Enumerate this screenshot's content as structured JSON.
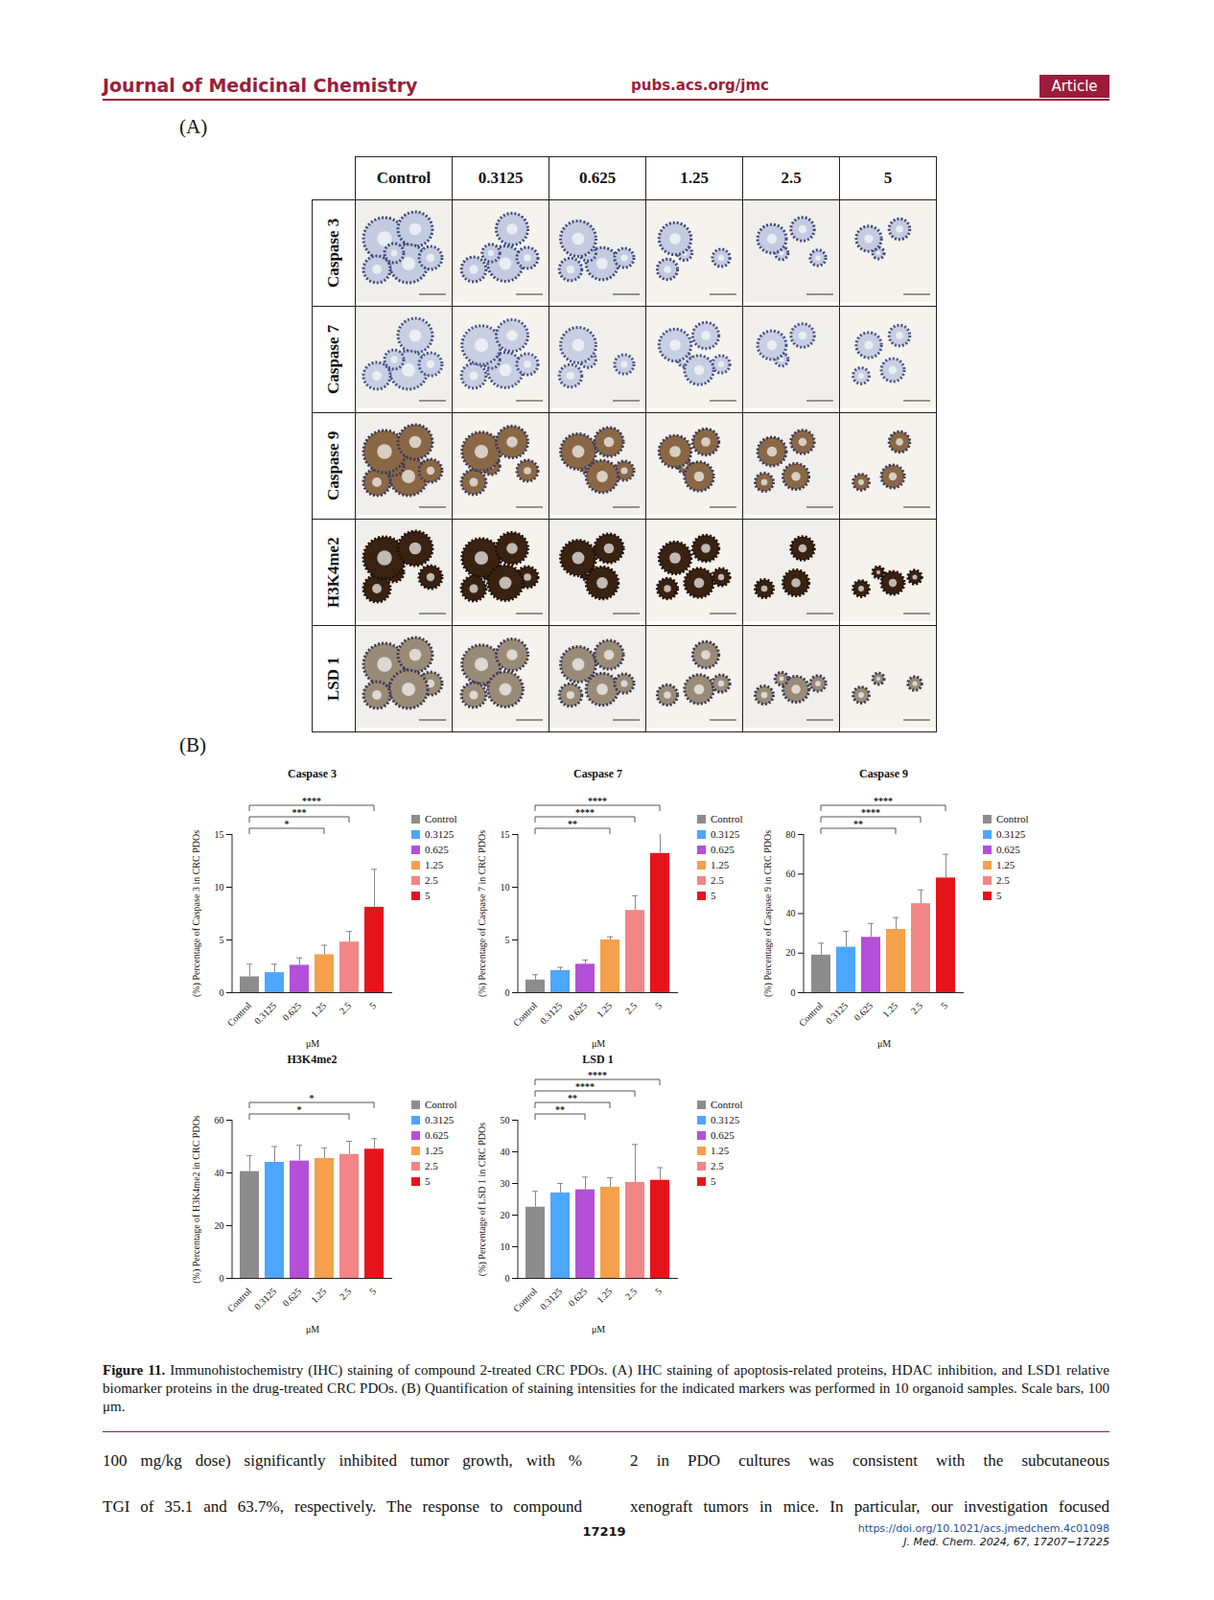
{
  "header": {
    "journal": "Journal of Medicinal Chemistry",
    "site": "pubs.acs.org/jmc",
    "tag": "Article"
  },
  "panel_a": {
    "label": "(A)",
    "columns": [
      "Control",
      "0.3125",
      "0.625",
      "1.25",
      "2.5",
      "5"
    ],
    "rows": [
      "Caspase 3",
      "Caspase 7",
      "Caspase 9",
      "H3K4me2",
      "LSD 1"
    ]
  },
  "panel_b_label": "(B)",
  "chart_data": [
    {
      "type": "bar",
      "title": "Caspase 3",
      "categories": [
        "Control",
        "0.3125",
        "0.625",
        "1.25",
        "2.5",
        "5"
      ],
      "values": [
        1.5,
        1.9,
        2.6,
        3.6,
        4.8,
        8.1
      ],
      "errors": [
        1.2,
        0.8,
        0.7,
        0.9,
        1.0,
        3.6
      ],
      "colors": [
        "#8c8c8c",
        "#4da6ff",
        "#b44fd8",
        "#f5a04a",
        "#f28585",
        "#e8141c"
      ],
      "xlabel": "μM",
      "ylabel": "(%) Percentage of Caspase 3 in CRC PDOs",
      "ylim": [
        0,
        15
      ],
      "yticks": [
        0,
        5,
        10,
        15
      ],
      "legend": "right",
      "significance": [
        {
          "from": "Control",
          "to": "1.25",
          "label": "*"
        },
        {
          "from": "Control",
          "to": "2.5",
          "label": "***"
        },
        {
          "from": "Control",
          "to": "5",
          "label": "****"
        }
      ]
    },
    {
      "type": "bar",
      "title": "Caspase 7",
      "categories": [
        "Control",
        "0.3125",
        "0.625",
        "1.25",
        "2.5",
        "5"
      ],
      "values": [
        1.2,
        2.1,
        2.7,
        5.0,
        7.8,
        13.2
      ],
      "errors": [
        0.5,
        0.3,
        0.4,
        0.3,
        1.4,
        2.3
      ],
      "colors": [
        "#8c8c8c",
        "#4da6ff",
        "#b44fd8",
        "#f5a04a",
        "#f28585",
        "#e8141c"
      ],
      "xlabel": "μM",
      "ylabel": "(%) Percentage of Caspase 7 in CRC PDOs",
      "ylim": [
        0,
        15
      ],
      "yticks": [
        0,
        5,
        10,
        15
      ],
      "legend": "right",
      "significance": [
        {
          "from": "Control",
          "to": "1.25",
          "label": "**"
        },
        {
          "from": "Control",
          "to": "2.5",
          "label": "****"
        },
        {
          "from": "Control",
          "to": "5",
          "label": "****"
        }
      ]
    },
    {
      "type": "bar",
      "title": "Caspase 9",
      "categories": [
        "Control",
        "0.3125",
        "0.625",
        "1.25",
        "2.5",
        "5"
      ],
      "values": [
        19,
        23,
        28,
        32,
        45,
        58
      ],
      "errors": [
        6,
        8,
        7,
        6,
        7,
        12
      ],
      "colors": [
        "#8c8c8c",
        "#4da6ff",
        "#b44fd8",
        "#f5a04a",
        "#f28585",
        "#e8141c"
      ],
      "xlabel": "μM",
      "ylabel": "(%) Percentage of Caspase 9 in CRC PDOs",
      "ylim": [
        0,
        80
      ],
      "yticks": [
        0,
        20,
        40,
        60,
        80
      ],
      "legend": "right",
      "significance": [
        {
          "from": "Control",
          "to": "1.25",
          "label": "**"
        },
        {
          "from": "Control",
          "to": "2.5",
          "label": "****"
        },
        {
          "from": "Control",
          "to": "5",
          "label": "****"
        }
      ]
    },
    {
      "type": "bar",
      "title": "H3K4me2",
      "categories": [
        "Control",
        "0.3125",
        "0.625",
        "1.25",
        "2.5",
        "5"
      ],
      "values": [
        40.5,
        44,
        44.5,
        45.5,
        47,
        49
      ],
      "errors": [
        6,
        6,
        6,
        4,
        5,
        4
      ],
      "colors": [
        "#8c8c8c",
        "#4da6ff",
        "#b44fd8",
        "#f5a04a",
        "#f28585",
        "#e8141c"
      ],
      "xlabel": "μM",
      "ylabel": "(%) Percentage of H3K4me2 in CRC PDOs",
      "ylim": [
        0,
        60
      ],
      "yticks": [
        0,
        20,
        40,
        60
      ],
      "legend": "right",
      "significance": [
        {
          "from": "Control",
          "to": "2.5",
          "label": "*"
        },
        {
          "from": "Control",
          "to": "5",
          "label": "*"
        }
      ]
    },
    {
      "type": "bar",
      "title": "LSD 1",
      "categories": [
        "Control",
        "0.3125",
        "0.625",
        "1.25",
        "2.5",
        "5"
      ],
      "values": [
        22.5,
        27,
        28,
        28.8,
        30.3,
        31
      ],
      "errors": [
        5,
        3,
        4,
        3,
        12,
        4
      ],
      "colors": [
        "#8c8c8c",
        "#4da6ff",
        "#b44fd8",
        "#f5a04a",
        "#f28585",
        "#e8141c"
      ],
      "xlabel": "μM",
      "ylabel": "(%) Percentage of LSD 1 in CRC PDOs",
      "ylim": [
        0,
        50
      ],
      "yticks": [
        0,
        10,
        20,
        30,
        40,
        50
      ],
      "legend": "right",
      "significance": [
        {
          "from": "Control",
          "to": "0.625",
          "label": "**"
        },
        {
          "from": "Control",
          "to": "1.25",
          "label": "**"
        },
        {
          "from": "Control",
          "to": "2.5",
          "label": "****"
        },
        {
          "from": "Control",
          "to": "5",
          "label": "****"
        }
      ]
    }
  ],
  "caption": {
    "label": "Figure 11.",
    "text": "Immunohistochemistry (IHC) staining of compound 2-treated CRC PDOs. (A) IHC staining of apoptosis-related proteins, HDAC inhibition, and LSD1 relative biomarker proteins in the drug-treated CRC PDOs. (B) Quantification of staining intensities for the indicated markers was performed in 10 organoid samples. Scale bars, 100 μm."
  },
  "body": {
    "left": [
      "100 mg/kg dose) significantly inhibited tumor growth, with %",
      "TGI of 35.1 and 63.7%, respectively. The response to compound"
    ],
    "right": [
      "2 in PDO cultures was consistent with the subcutaneous",
      "xenograft tumors in mice. In particular, our investigation focused"
    ]
  },
  "footer": {
    "page": "17219",
    "doi": "https://doi.org/10.1021/acs.jmedchem.4c01098",
    "citation": "J. Med. Chem. 2024, 67, 17207−17225"
  }
}
